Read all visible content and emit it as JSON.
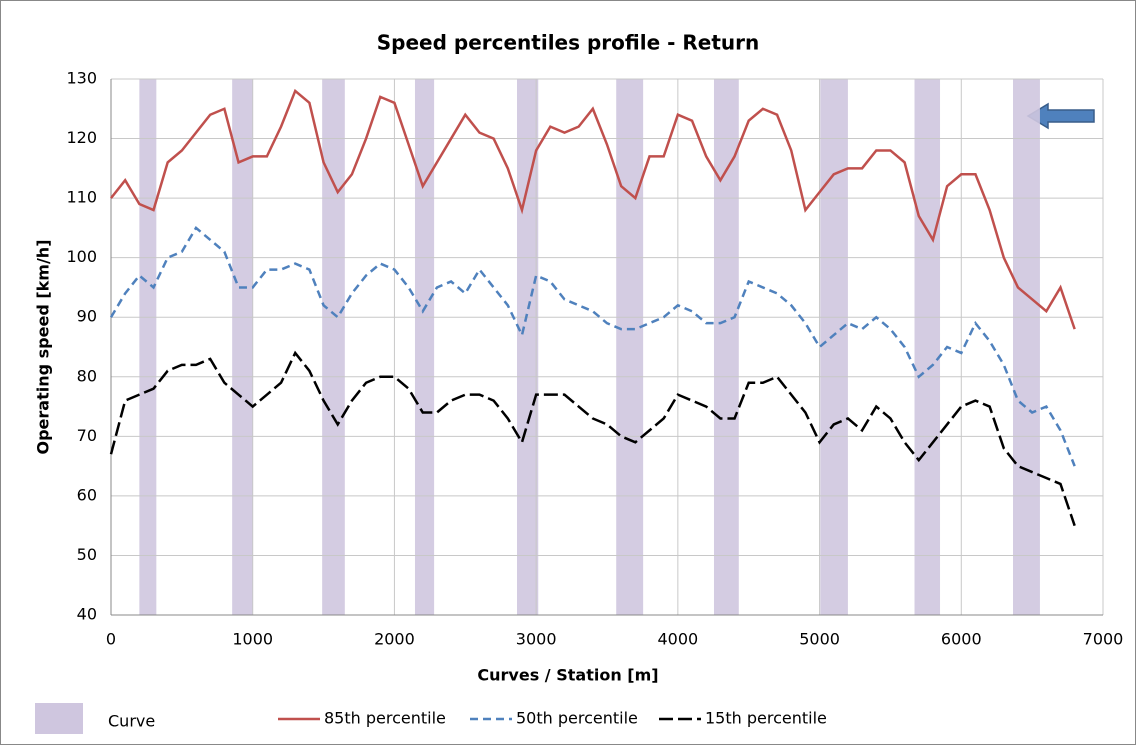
{
  "chart_data": {
    "type": "line",
    "title": "Speed percentiles profile - Return",
    "x_label": "Curves / Station [m]",
    "y_label": "Operating speed [km/h]",
    "xlim": [
      0,
      7000
    ],
    "xticks": [
      0,
      1000,
      2000,
      3000,
      4000,
      5000,
      6000,
      7000
    ],
    "ylim": [
      40,
      130
    ],
    "yticks": [
      40,
      50,
      60,
      70,
      80,
      90,
      100,
      110,
      120,
      130
    ],
    "grid": true,
    "legend": "bottom",
    "curves": {
      "name": "Curve",
      "color": "#cfc6df",
      "ranges": [
        [
          200,
          320
        ],
        [
          855,
          1000
        ],
        [
          1490,
          1650
        ],
        [
          2145,
          2280
        ],
        [
          2865,
          3015
        ],
        [
          3565,
          3755
        ],
        [
          4255,
          4430
        ],
        [
          5005,
          5200
        ],
        [
          5670,
          5850
        ],
        [
          6365,
          6555
        ]
      ]
    },
    "x": [
      0,
      100,
      200,
      300,
      400,
      500,
      600,
      700,
      800,
      900,
      1000,
      1100,
      1200,
      1300,
      1400,
      1500,
      1600,
      1700,
      1800,
      1900,
      2000,
      2100,
      2200,
      2300,
      2400,
      2500,
      2600,
      2700,
      2800,
      2900,
      3000,
      3100,
      3200,
      3300,
      3400,
      3500,
      3600,
      3700,
      3800,
      3900,
      4000,
      4100,
      4200,
      4300,
      4400,
      4500,
      4600,
      4700,
      4800,
      4900,
      5000,
      5100,
      5200,
      5300,
      5400,
      5500,
      5600,
      5700,
      5800,
      5900,
      6000,
      6100,
      6200,
      6300,
      6400,
      6500,
      6600,
      6700,
      6800
    ],
    "series": [
      {
        "name": "85th percentile",
        "color": "#c0504d",
        "dash": "solid",
        "values": [
          110,
          113,
          109,
          108,
          116,
          118,
          121,
          124,
          125,
          116,
          117,
          117,
          122,
          128,
          126,
          116,
          111,
          114,
          120,
          127,
          126,
          119,
          112,
          116,
          120,
          124,
          121,
          120,
          115,
          108,
          118,
          122,
          121,
          122,
          125,
          119,
          112,
          110,
          117,
          117,
          124,
          123,
          117,
          113,
          117,
          123,
          125,
          124,
          118,
          108,
          111,
          114,
          115,
          115,
          118,
          118,
          116,
          107,
          103,
          112,
          114,
          114,
          108,
          100,
          95,
          93,
          91,
          95,
          88
        ]
      },
      {
        "name": "50th percentile",
        "color": "#4f81bd",
        "dash": "dashed",
        "values": [
          90,
          94,
          97,
          95,
          100,
          101,
          105,
          103,
          101,
          95,
          95,
          98,
          98,
          99,
          98,
          92,
          90,
          94,
          97,
          99,
          98,
          95,
          91,
          95,
          96,
          94,
          98,
          95,
          92,
          87,
          97,
          96,
          93,
          92,
          91,
          89,
          88,
          88,
          89,
          90,
          92,
          91,
          89,
          89,
          90,
          96,
          95,
          94,
          92,
          89,
          85,
          87,
          89,
          88,
          90,
          88,
          85,
          80,
          82,
          85,
          84,
          89,
          86,
          82,
          76,
          74,
          75,
          71,
          65
        ]
      },
      {
        "name": "15th percentile",
        "color": "#000000",
        "dash": "longdash",
        "values": [
          67,
          76,
          77,
          78,
          81,
          82,
          82,
          83,
          79,
          77,
          75,
          77,
          79,
          84,
          81,
          76,
          72,
          76,
          79,
          80,
          80,
          78,
          74,
          74,
          76,
          77,
          77,
          76,
          73,
          69,
          77,
          77,
          77,
          75,
          73,
          72,
          70,
          69,
          71,
          73,
          77,
          76,
          75,
          73,
          73,
          79,
          79,
          80,
          77,
          74,
          69,
          72,
          73,
          71,
          75,
          73,
          69,
          66,
          69,
          72,
          75,
          76,
          75,
          68,
          65,
          64,
          63,
          62,
          55
        ]
      }
    ]
  }
}
